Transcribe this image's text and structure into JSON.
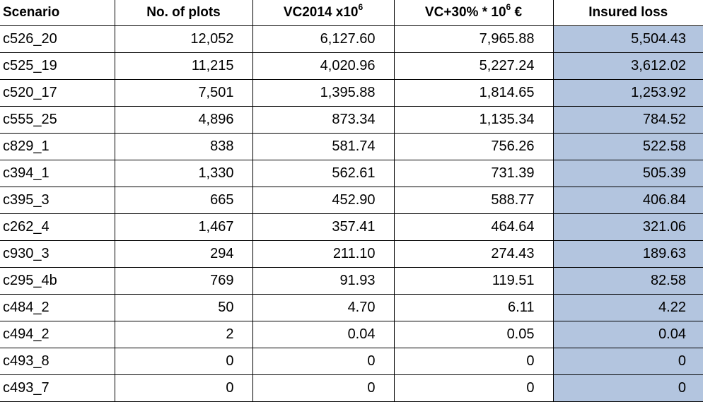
{
  "headers": {
    "scenario": "Scenario",
    "plots": "No. of plots",
    "vc2014_base": "VC2014 x10",
    "vc2014_exp": "6",
    "vc30_base": "VC+30% * 10",
    "vc30_exp": "6",
    "vc30_unit": " €",
    "insured": "Insured loss"
  },
  "highlight_color": "#b3c5df",
  "rows": [
    {
      "scenario": "c526_20",
      "plots": "12,052",
      "vc2014": "6,127.60",
      "vc30": "7,965.88",
      "insured": "5,504.43"
    },
    {
      "scenario": "c525_19",
      "plots": "11,215",
      "vc2014": "4,020.96",
      "vc30": "5,227.24",
      "insured": "3,612.02"
    },
    {
      "scenario": "c520_17",
      "plots": "7,501",
      "vc2014": "1,395.88",
      "vc30": "1,814.65",
      "insured": "1,253.92"
    },
    {
      "scenario": "c555_25",
      "plots": "4,896",
      "vc2014": "873.34",
      "vc30": "1,135.34",
      "insured": "784.52"
    },
    {
      "scenario": "c829_1",
      "plots": "838",
      "vc2014": "581.74",
      "vc30": "756.26",
      "insured": "522.58"
    },
    {
      "scenario": "c394_1",
      "plots": "1,330",
      "vc2014": "562.61",
      "vc30": "731.39",
      "insured": "505.39"
    },
    {
      "scenario": "c395_3",
      "plots": "665",
      "vc2014": "452.90",
      "vc30": "588.77",
      "insured": "406.84"
    },
    {
      "scenario": "c262_4",
      "plots": "1,467",
      "vc2014": "357.41",
      "vc30": "464.64",
      "insured": "321.06"
    },
    {
      "scenario": "c930_3",
      "plots": "294",
      "vc2014": "211.10",
      "vc30": "274.43",
      "insured": "189.63"
    },
    {
      "scenario": "c295_4b",
      "plots": "769",
      "vc2014": "91.93",
      "vc30": "119.51",
      "insured": "82.58"
    },
    {
      "scenario": "c484_2",
      "plots": "50",
      "vc2014": "4.70",
      "vc30": "6.11",
      "insured": "4.22"
    },
    {
      "scenario": "c494_2",
      "plots": "2",
      "vc2014": "0.04",
      "vc30": "0.05",
      "insured": "0.04"
    },
    {
      "scenario": "c493_8",
      "plots": "0",
      "vc2014": "0",
      "vc30": "0",
      "insured": "0"
    },
    {
      "scenario": "c493_7",
      "plots": "0",
      "vc2014": "0",
      "vc30": "0",
      "insured": "0"
    }
  ]
}
